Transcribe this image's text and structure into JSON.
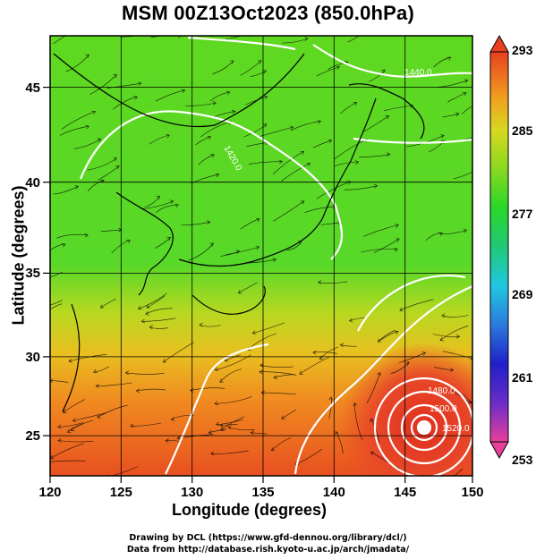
{
  "title": "MSM 00Z13Oct2023 (850.0hPa)",
  "x_axis": {
    "label": "Longitude (degrees)",
    "ticks": [
      "120",
      "125",
      "130",
      "135",
      "140",
      "145",
      "150"
    ],
    "range": [
      120,
      150
    ]
  },
  "y_axis": {
    "label": "Latitude  (degrees)",
    "ticks": [
      "25",
      "30",
      "35",
      "40",
      "45"
    ],
    "range": [
      22.4,
      47.6
    ]
  },
  "contour_labels": [
    "1440.0",
    "1420.0",
    "1480.0",
    "1500.0",
    "1520.0"
  ],
  "colorbar": {
    "min": 253,
    "max": 293,
    "ticks": [
      "293",
      "285",
      "277",
      "269",
      "261",
      "253"
    ],
    "colors": [
      "#e8409a",
      "#6a2cc8",
      "#2020c8",
      "#2a7adc",
      "#20c8e0",
      "#20c878",
      "#28d828",
      "#8ad820",
      "#d8d820",
      "#f0a020",
      "#e84020"
    ]
  },
  "credits": {
    "line1": "Drawing by DCL (https://www.gfd-dennou.org/library/dcl/)",
    "line2": "Data from http://database.rish.kyoto-u.ac.jp/arch/jmadata/"
  }
}
